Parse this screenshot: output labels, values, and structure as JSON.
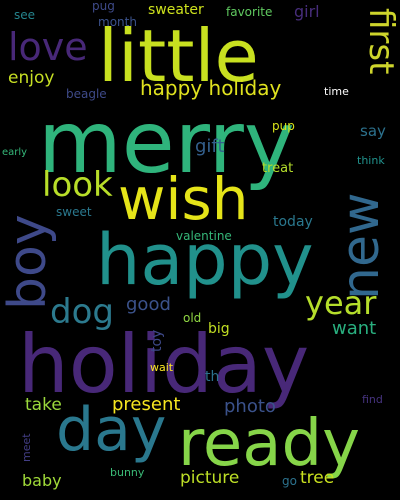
{
  "words": [
    {
      "text": "merry",
      "color": "#2fb47c"
    },
    {
      "text": "holiday",
      "color": "#482878"
    },
    {
      "text": "little",
      "color": "#c8e020"
    },
    {
      "text": "happy",
      "color": "#21918c"
    },
    {
      "text": "ready",
      "color": "#86d549"
    },
    {
      "text": "wish",
      "color": "#e5e419"
    },
    {
      "text": "day",
      "color": "#2a788e"
    },
    {
      "text": "boy",
      "color": "#3e4989"
    },
    {
      "text": "new",
      "color": "#31688e"
    },
    {
      "text": "love",
      "color": "#482878"
    },
    {
      "text": "look",
      "color": "#b8de29"
    },
    {
      "text": "first",
      "color": "#ced52c"
    },
    {
      "text": "dog",
      "color": "#2c7a8e"
    },
    {
      "text": "year",
      "color": "#b5de2b"
    },
    {
      "text": "happy holiday",
      "color": "#e0e21f"
    },
    {
      "text": "enjoy",
      "color": "#c6df24"
    },
    {
      "text": "gift",
      "color": "#34608d"
    },
    {
      "text": "good",
      "color": "#3b528b"
    },
    {
      "text": "want",
      "color": "#29af7f"
    },
    {
      "text": "photo",
      "color": "#3b528b"
    },
    {
      "text": "present",
      "color": "#f6e620"
    },
    {
      "text": "take",
      "color": "#9bd93c"
    },
    {
      "text": "picture",
      "color": "#bddf26"
    },
    {
      "text": "tree",
      "color": "#cae11f"
    },
    {
      "text": "baby",
      "color": "#a0da39"
    },
    {
      "text": "sweater",
      "color": "#cde11d"
    },
    {
      "text": "girl",
      "color": "#472d7b"
    },
    {
      "text": "favorite",
      "color": "#60ca60"
    },
    {
      "text": "beagle",
      "color": "#3e4a89"
    },
    {
      "text": "month",
      "color": "#3b528b"
    },
    {
      "text": "see",
      "color": "#25858e"
    },
    {
      "text": "pug",
      "color": "#3e4a89"
    },
    {
      "text": "time",
      "color": "#ffffff"
    },
    {
      "text": "pup",
      "color": "#d8e219"
    },
    {
      "text": "say",
      "color": "#2c728e"
    },
    {
      "text": "think",
      "color": "#21918c"
    },
    {
      "text": "treat",
      "color": "#b5de2b"
    },
    {
      "text": "early",
      "color": "#35b779"
    },
    {
      "text": "sweet",
      "color": "#2a788e"
    },
    {
      "text": "today",
      "color": "#2a788e"
    },
    {
      "text": "valentine",
      "color": "#35b779"
    },
    {
      "text": "toy",
      "color": "#3e4989"
    },
    {
      "text": "old",
      "color": "#90d743"
    },
    {
      "text": "big",
      "color": "#c2df23"
    },
    {
      "text": "wait",
      "color": "#fde725"
    },
    {
      "text": "th",
      "color": "#2c728e"
    },
    {
      "text": "find",
      "color": "#46337f"
    },
    {
      "text": "meet",
      "color": "#433e85"
    },
    {
      "text": "bunny",
      "color": "#3aba76"
    },
    {
      "text": "go",
      "color": "#2c728e"
    }
  ]
}
